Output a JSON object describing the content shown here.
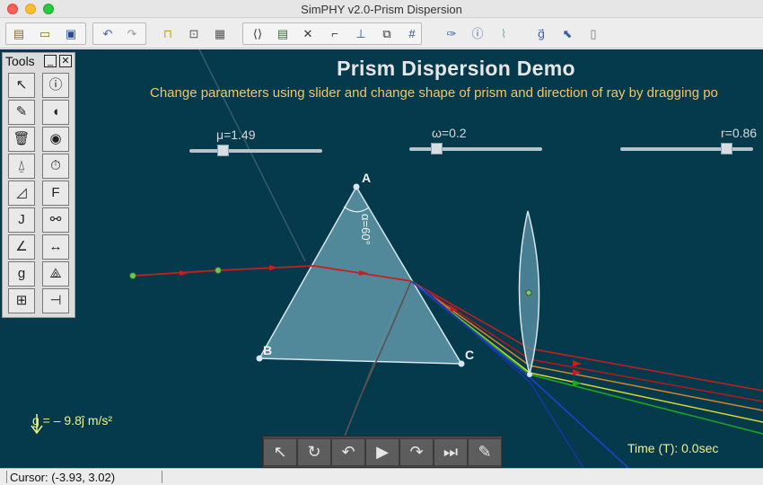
{
  "window": {
    "title": "SimPHY v2.0-Prism Dispersion"
  },
  "toolbar": {
    "icons": [
      "new-file-icon",
      "open-file-icon",
      "save-icon",
      "undo-icon",
      "redo-icon",
      "lock-icon",
      "export-icon",
      "properties-icon",
      "code-icon",
      "panel-icon",
      "tools-icon",
      "ruler-icon",
      "axes-icon",
      "snapshot-icon",
      "grid-icon",
      "pin-icon",
      "info-icon",
      "link-icon",
      "gravity-icon",
      "select-move-icon",
      "mouse-icon"
    ]
  },
  "demo": {
    "title": "Prism Dispersion Demo",
    "subtitle": "Change parameters using slider and change shape of prism and direction of ray by dragging po"
  },
  "sliders": [
    {
      "label": "μ=1.49",
      "value": 1.49
    },
    {
      "label": "ω=0.2",
      "value": 0.2
    },
    {
      "label": "r=0.86",
      "value": 0.86
    }
  ],
  "prism": {
    "vertex_a": "A",
    "vertex_b": "B",
    "vertex_c": "C",
    "angle_label": "α=60°"
  },
  "tools_panel": {
    "title": "Tools",
    "minimize": "_",
    "close": "✕",
    "buttons": [
      {
        "name": "select-tool",
        "glyph": "↖"
      },
      {
        "name": "info-tool",
        "glyph": "ⓘ"
      },
      {
        "name": "pen-tool",
        "glyph": "✎"
      },
      {
        "name": "mouse-tool",
        "glyph": "◖"
      },
      {
        "name": "delete-tool",
        "glyph": "🗑"
      },
      {
        "name": "camera-tool",
        "glyph": "◉"
      },
      {
        "name": "pendulum-tool",
        "glyph": "⍙"
      },
      {
        "name": "timer-tool",
        "glyph": "⏱"
      },
      {
        "name": "incline-tool",
        "glyph": "◿"
      },
      {
        "name": "force-tool",
        "glyph": "F"
      },
      {
        "name": "impulse-tool",
        "glyph": "J"
      },
      {
        "name": "joint-tool",
        "glyph": "⚯"
      },
      {
        "name": "angle-tool",
        "glyph": "∠"
      },
      {
        "name": "measure-tool",
        "glyph": "↔"
      },
      {
        "name": "gravity-tool",
        "glyph": "g"
      },
      {
        "name": "compass-tool",
        "glyph": "⟁"
      },
      {
        "name": "battery-tool",
        "glyph": "⊞"
      },
      {
        "name": "capacitor-tool",
        "glyph": "⊣"
      }
    ]
  },
  "gravity": {
    "text": "g = – 9.8ĵ m/s²"
  },
  "time": {
    "text": "Time (T): 0.0sec"
  },
  "playbar": {
    "buttons": [
      {
        "name": "select-button",
        "glyph": "↖"
      },
      {
        "name": "reset-button",
        "glyph": "↻"
      },
      {
        "name": "step-back-button",
        "glyph": "↶"
      },
      {
        "name": "play-button",
        "glyph": "▶"
      },
      {
        "name": "redo-button",
        "glyph": "↷"
      },
      {
        "name": "step-forward-button",
        "glyph": "⏭"
      },
      {
        "name": "edit-button",
        "glyph": "✎"
      }
    ]
  },
  "status": {
    "cursor": "Cursor: (-3.93, 3.02)"
  },
  "colors": {
    "canvas_bg": "#053a4d",
    "prism_fill": "#5f96a8",
    "red_ray": "#c81e1e",
    "orange_ray": "#d9832a",
    "yellow_ray": "#d8d830",
    "green_ray": "#1ea81e",
    "blue_ray": "#1e3fbf"
  }
}
